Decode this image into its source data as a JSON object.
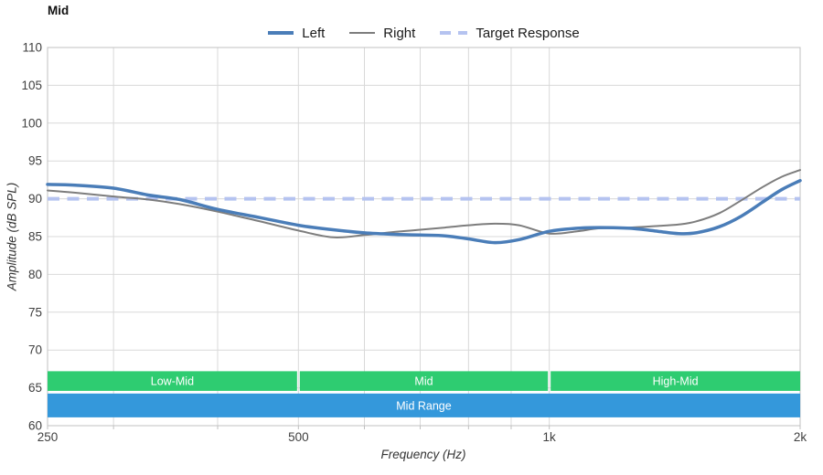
{
  "title": "Mid",
  "legend": [
    {
      "label": "Left",
      "color": "#4a7db8",
      "style": "solid",
      "thickness": 4
    },
    {
      "label": "Right",
      "color": "#7d7d7d",
      "style": "solid",
      "thickness": 2
    },
    {
      "label": "Target Response",
      "color": "#b5c3f0",
      "style": "dashed",
      "thickness": 4
    }
  ],
  "chart_data": {
    "type": "line",
    "title": "Mid",
    "xlabel": "Frequency (Hz)",
    "ylabel": "Amplitude (dB SPL)",
    "x_scale": "log",
    "xlim": [
      250,
      2000
    ],
    "ylim": [
      60,
      110
    ],
    "grid": true,
    "legend_position": "top-center",
    "x_ticks": [
      {
        "value": 250,
        "label": "250"
      },
      {
        "value": 500,
        "label": "500"
      },
      {
        "value": 1000,
        "label": "1k"
      },
      {
        "value": 2000,
        "label": "2k"
      }
    ],
    "x_gridlines": [
      250,
      300,
      400,
      500,
      600,
      700,
      800,
      900,
      1000,
      2000
    ],
    "y_ticks": [
      60,
      65,
      70,
      75,
      80,
      85,
      90,
      95,
      100,
      105,
      110
    ],
    "x": [
      250,
      270,
      300,
      330,
      360,
      400,
      450,
      500,
      550,
      600,
      650,
      700,
      750,
      800,
      860,
      920,
      1000,
      1080,
      1150,
      1250,
      1350,
      1430,
      1500,
      1600,
      1700,
      1800,
      1900,
      2000
    ],
    "series": [
      {
        "name": "Left",
        "color": "#4a7db8",
        "width": 3.5,
        "dash": null,
        "values": [
          91.9,
          91.8,
          91.4,
          90.5,
          89.9,
          88.6,
          87.5,
          86.5,
          85.9,
          85.5,
          85.3,
          85.2,
          85.1,
          84.7,
          84.2,
          84.6,
          85.7,
          86.1,
          86.2,
          86.1,
          85.7,
          85.4,
          85.5,
          86.3,
          87.7,
          89.5,
          91.2,
          92.4
        ]
      },
      {
        "name": "Right",
        "color": "#7d7d7d",
        "width": 2,
        "dash": null,
        "values": [
          91.1,
          90.8,
          90.3,
          89.9,
          89.3,
          88.3,
          87.0,
          85.8,
          84.9,
          85.2,
          85.6,
          85.9,
          86.2,
          86.5,
          86.7,
          86.5,
          85.4,
          85.7,
          86.1,
          86.2,
          86.4,
          86.6,
          87.0,
          88.1,
          89.8,
          91.5,
          92.9,
          93.8
        ]
      }
    ],
    "target_response": {
      "name": "Target Response",
      "value": 90,
      "color": "#b5c3f0",
      "width": 4,
      "dash": [
        13,
        8.5
      ]
    },
    "bands": [
      {
        "label": "Low-Mid",
        "from": 250,
        "to": 500,
        "color": "#2ecc71",
        "row": "upper"
      },
      {
        "label": "Mid",
        "from": 500,
        "to": 1000,
        "color": "#2ecc71",
        "row": "upper"
      },
      {
        "label": "High-Mid",
        "from": 1000,
        "to": 2000,
        "color": "#2ecc71",
        "row": "upper"
      },
      {
        "label": "Mid Range",
        "from": 250,
        "to": 2000,
        "color": "#3498db",
        "row": "lower"
      }
    ],
    "band_rows": {
      "upper": {
        "db_top": 67.2,
        "db_bottom": 64.6
      },
      "lower": {
        "db_top": 64.25,
        "db_bottom": 61.1
      }
    },
    "colors": {
      "grid": "#d9d9d9",
      "border": "#c0c0c0",
      "tick_label": "#404040",
      "band_text": "#ffffff"
    }
  }
}
